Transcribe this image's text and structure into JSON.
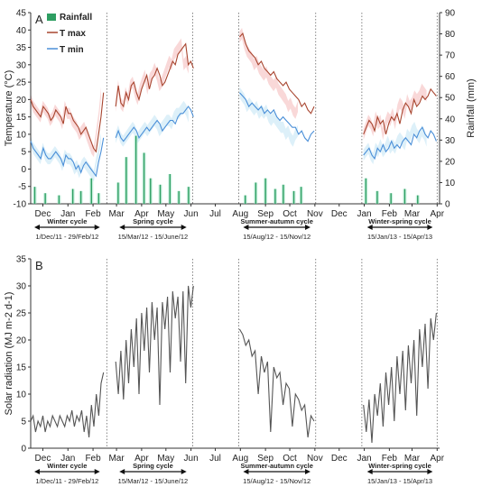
{
  "chart_data": [
    {
      "type": "line",
      "panel_label": "A",
      "ylabel": "Temperature (°C)",
      "y2label": "Rainfall (mm)",
      "ylim": [
        -10,
        45
      ],
      "yticks": [
        -10,
        -5,
        0,
        5,
        10,
        15,
        20,
        25,
        30,
        35,
        40,
        45
      ],
      "y2lim": [
        0,
        90
      ],
      "y2ticks": [
        0,
        10,
        20,
        30,
        40,
        50,
        60,
        70,
        80,
        90
      ],
      "x_ticks": [
        "Dec",
        "Jan",
        "Feb",
        "Mar",
        "Apr",
        "May",
        "Jun",
        "Jul",
        "Aug",
        "Sep",
        "Oct",
        "Nov",
        "Dec",
        "Jan",
        "Feb",
        "Mar",
        "Apr"
      ],
      "legend": [
        "Rainfall",
        "T max",
        "T min"
      ],
      "legend_position": "top-left",
      "colors": {
        "tmax": "#a8452f",
        "tmin": "#4a8fd8",
        "rainfall": "#2e9e62",
        "tmax_band": "#f6c8c8",
        "tmin_band": "#cfe9f7",
        "rainfall_band": "#9be3c2"
      },
      "series": [
        {
          "name": "T max",
          "segments": [
            {
              "start_day": 0,
              "values": [
                20,
                18,
                17,
                16,
                15,
                18,
                17,
                16,
                14,
                15,
                17,
                16,
                15,
                13,
                18,
                16,
                16,
                14,
                13,
                12,
                10,
                11,
                12,
                10,
                8,
                6,
                5,
                10,
                15,
                22
              ]
            },
            {
              "start_day": 105,
              "values": [
                18,
                24,
                19,
                18,
                22,
                20,
                24,
                25,
                22,
                20,
                23,
                25,
                27,
                23,
                26,
                27,
                29,
                27,
                24,
                25,
                27,
                29,
                31,
                30,
                33,
                34,
                35,
                36,
                30,
                31,
                29
              ]
            },
            {
              "start_day": 258,
              "values": [
                38,
                39,
                36,
                34,
                33,
                32,
                30,
                31,
                29,
                28,
                27,
                28,
                26,
                25,
                24,
                25,
                23,
                22,
                21,
                20,
                18,
                19,
                17,
                16,
                18
              ]
            },
            {
              "start_day": 411,
              "values": [
                10,
                12,
                14,
                13,
                11,
                15,
                13,
                14,
                10,
                13,
                15,
                14,
                16,
                13,
                17,
                19,
                18,
                16,
                20,
                18,
                19,
                21,
                20,
                21,
                23,
                22,
                21
              ]
            }
          ]
        },
        {
          "name": "T min",
          "segments": [
            {
              "start_day": 0,
              "values": [
                8,
                6,
                5,
                4,
                3,
                6,
                4,
                3,
                3,
                4,
                5,
                4,
                3,
                1,
                4,
                3,
                3,
                2,
                0,
                1,
                -1,
                1,
                2,
                1,
                0,
                -1,
                -2,
                2,
                5,
                9
              ]
            },
            {
              "start_day": 105,
              "values": [
                9,
                11,
                9,
                8,
                9,
                10,
                11,
                12,
                11,
                9,
                10,
                11,
                12,
                11,
                12,
                13,
                14,
                13,
                11,
                12,
                13,
                14,
                14,
                13,
                15,
                16,
                16,
                17,
                18,
                17,
                15
              ]
            },
            {
              "start_day": 258,
              "values": [
                22,
                21,
                20,
                18,
                19,
                18,
                17,
                18,
                16,
                17,
                16,
                17,
                15,
                14,
                15,
                14,
                13,
                12,
                12,
                10,
                11,
                9,
                8,
                10,
                11
              ]
            },
            {
              "start_day": 411,
              "values": [
                4,
                5,
                6,
                4,
                3,
                6,
                5,
                7,
                5,
                6,
                8,
                6,
                7,
                6,
                8,
                9,
                8,
                7,
                10,
                9,
                11,
                12,
                10,
                9,
                11,
                10,
                8
              ]
            }
          ]
        },
        {
          "name": "Rainfall",
          "values": [
            {
              "day": 5,
              "value": 8
            },
            {
              "day": 18,
              "value": 5
            },
            {
              "day": 35,
              "value": 4
            },
            {
              "day": 52,
              "value": 7
            },
            {
              "day": 62,
              "value": 6
            },
            {
              "day": 75,
              "value": 12
            },
            {
              "day": 84,
              "value": 5
            },
            {
              "day": 108,
              "value": 10
            },
            {
              "day": 118,
              "value": 22
            },
            {
              "day": 130,
              "value": 32
            },
            {
              "day": 140,
              "value": 24
            },
            {
              "day": 148,
              "value": 12
            },
            {
              "day": 160,
              "value": 9
            },
            {
              "day": 172,
              "value": 14
            },
            {
              "day": 183,
              "value": 6
            },
            {
              "day": 195,
              "value": 8
            },
            {
              "day": 265,
              "value": 4
            },
            {
              "day": 278,
              "value": 10
            },
            {
              "day": 290,
              "value": 12
            },
            {
              "day": 302,
              "value": 7
            },
            {
              "day": 312,
              "value": 9
            },
            {
              "day": 325,
              "value": 6
            },
            {
              "day": 334,
              "value": 8
            },
            {
              "day": 414,
              "value": 12
            },
            {
              "day": 428,
              "value": 6
            },
            {
              "day": 445,
              "value": 5
            },
            {
              "day": 462,
              "value": 7
            },
            {
              "day": 478,
              "value": 4
            }
          ]
        }
      ],
      "cycles": [
        {
          "name": "Winter cycle",
          "dates": "1/Dec/11   -   29/Feb/12",
          "start_day": 0,
          "end_day": 90
        },
        {
          "name": "Spring cycle",
          "dates": "15/Mar/12   -   15/June/12",
          "start_day": 105,
          "end_day": 197
        },
        {
          "name": "Summer-autumn cycle",
          "dates": "15/Aug/12 - 15/Nov/12",
          "start_day": 258,
          "end_day": 350
        },
        {
          "name": "Winter-spring cycle",
          "dates": "15/Jan/13   -   15/Apr/13",
          "start_day": 411,
          "end_day": 501
        }
      ]
    },
    {
      "type": "line",
      "panel_label": "B",
      "ylabel": "Solar radiation (MJ m-2 d-1)",
      "ylim": [
        0,
        35
      ],
      "yticks": [
        0,
        5,
        10,
        15,
        20,
        25,
        30,
        35
      ],
      "x_ticks": [
        "Dec",
        "Jan",
        "Feb",
        "Mar",
        "Apr",
        "May",
        "Jun",
        "Jul",
        "Aug",
        "Sep",
        "Oct",
        "Nov",
        "Dec",
        "Jan",
        "Feb",
        "Mar",
        "Apr"
      ],
      "colors": {
        "line": "#555555"
      },
      "series": [
        {
          "name": "",
          "segments": [
            {
              "start_day": 0,
              "values": [
                5,
                6,
                3,
                5,
                4,
                6,
                3,
                5,
                4,
                6,
                5,
                4,
                6,
                5,
                4,
                6,
                5,
                7,
                4,
                6,
                5,
                7,
                3,
                6,
                2,
                8,
                4,
                10,
                6,
                12,
                14
              ]
            },
            {
              "start_day": 105,
              "values": [
                16,
                10,
                18,
                9,
                20,
                12,
                22,
                15,
                24,
                10,
                25,
                18,
                26,
                14,
                27,
                20,
                26,
                8,
                27,
                22,
                28,
                14,
                29,
                24,
                28,
                16,
                29,
                12,
                30,
                26,
                30
              ]
            },
            {
              "start_day": 258,
              "values": [
                22,
                21,
                19,
                20,
                17,
                18,
                10,
                17,
                14,
                16,
                3,
                15,
                13,
                14,
                8,
                12,
                11,
                4,
                10,
                9,
                7,
                8,
                2,
                6,
                5
              ]
            },
            {
              "start_day": 411,
              "values": [
                8,
                3,
                9,
                1,
                10,
                6,
                12,
                4,
                14,
                8,
                15,
                5,
                17,
                10,
                18,
                7,
                19,
                12,
                20,
                6,
                22,
                15,
                23,
                11,
                24,
                20,
                25
              ]
            }
          ]
        }
      ],
      "cycles": [
        {
          "name": "Winter cycle",
          "dates": "1/Dec/11   -   29/Feb/12",
          "start_day": 0,
          "end_day": 90
        },
        {
          "name": "Spring cycle",
          "dates": "15/Mar/12   -   15/June/12",
          "start_day": 105,
          "end_day": 197
        },
        {
          "name": "Summer-autumn cycle",
          "dates": "15/Aug/12 - 15/Nov/12",
          "start_day": 258,
          "end_day": 350
        },
        {
          "name": "Winter-spring cycle",
          "dates": "15/Jan/13   -   15/Apr/13",
          "start_day": 411,
          "end_day": 501
        }
      ]
    }
  ]
}
